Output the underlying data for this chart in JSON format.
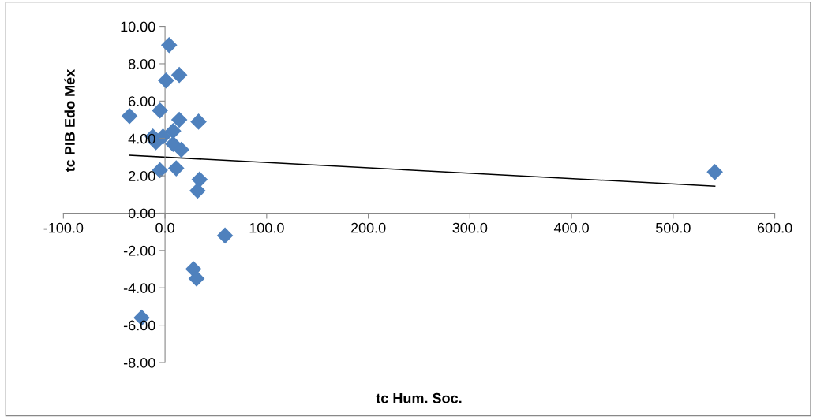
{
  "chart_data": {
    "type": "scatter",
    "xlabel": "tc Hum. Soc.",
    "ylabel": "tc PIB Edo Méx",
    "xlim": [
      -100,
      600
    ],
    "xticks": [
      {
        "value": -100,
        "label": "-100.0"
      },
      {
        "value": 0,
        "label": "0.0"
      },
      {
        "value": 100,
        "label": "100.0"
      },
      {
        "value": 200,
        "label": "200.0"
      },
      {
        "value": 300,
        "label": "300.0"
      },
      {
        "value": 400,
        "label": "400.0"
      },
      {
        "value": 500,
        "label": "500.0"
      },
      {
        "value": 600,
        "label": "600.0"
      }
    ],
    "ylim": [
      -8,
      10
    ],
    "yticks": [
      {
        "value": -8,
        "label": "-8.00"
      },
      {
        "value": -6,
        "label": "-6.00"
      },
      {
        "value": -4,
        "label": "-4.00"
      },
      {
        "value": -2,
        "label": "-2.00"
      },
      {
        "value": 0,
        "label": "0.00"
      },
      {
        "value": 2,
        "label": "2.00"
      },
      {
        "value": 4,
        "label": "4.00"
      },
      {
        "value": 6,
        "label": "6.00"
      },
      {
        "value": 8,
        "label": "8.00"
      },
      {
        "value": 10,
        "label": "10.00"
      }
    ],
    "grid": false,
    "legend": false,
    "series": [
      {
        "marker": "diamond",
        "color": "#4f81bd",
        "x": [
          4,
          1,
          14,
          -35,
          -5,
          14,
          33,
          -12,
          -9,
          -2,
          8,
          8,
          16,
          -5,
          11,
          34,
          32,
          59,
          28,
          31,
          -23,
          541
        ],
        "values": [
          9.0,
          7.1,
          7.4,
          5.2,
          5.5,
          5.0,
          4.9,
          4.1,
          3.8,
          4.1,
          4.4,
          3.7,
          3.4,
          2.3,
          2.4,
          1.8,
          1.2,
          -1.2,
          -3.0,
          -3.5,
          -5.6,
          2.2
        ]
      },
      {
        "type": "line",
        "marker": "none",
        "color": "#000000",
        "x": [
          -35,
          541
        ],
        "values": [
          3.1,
          1.45
        ]
      }
    ]
  }
}
